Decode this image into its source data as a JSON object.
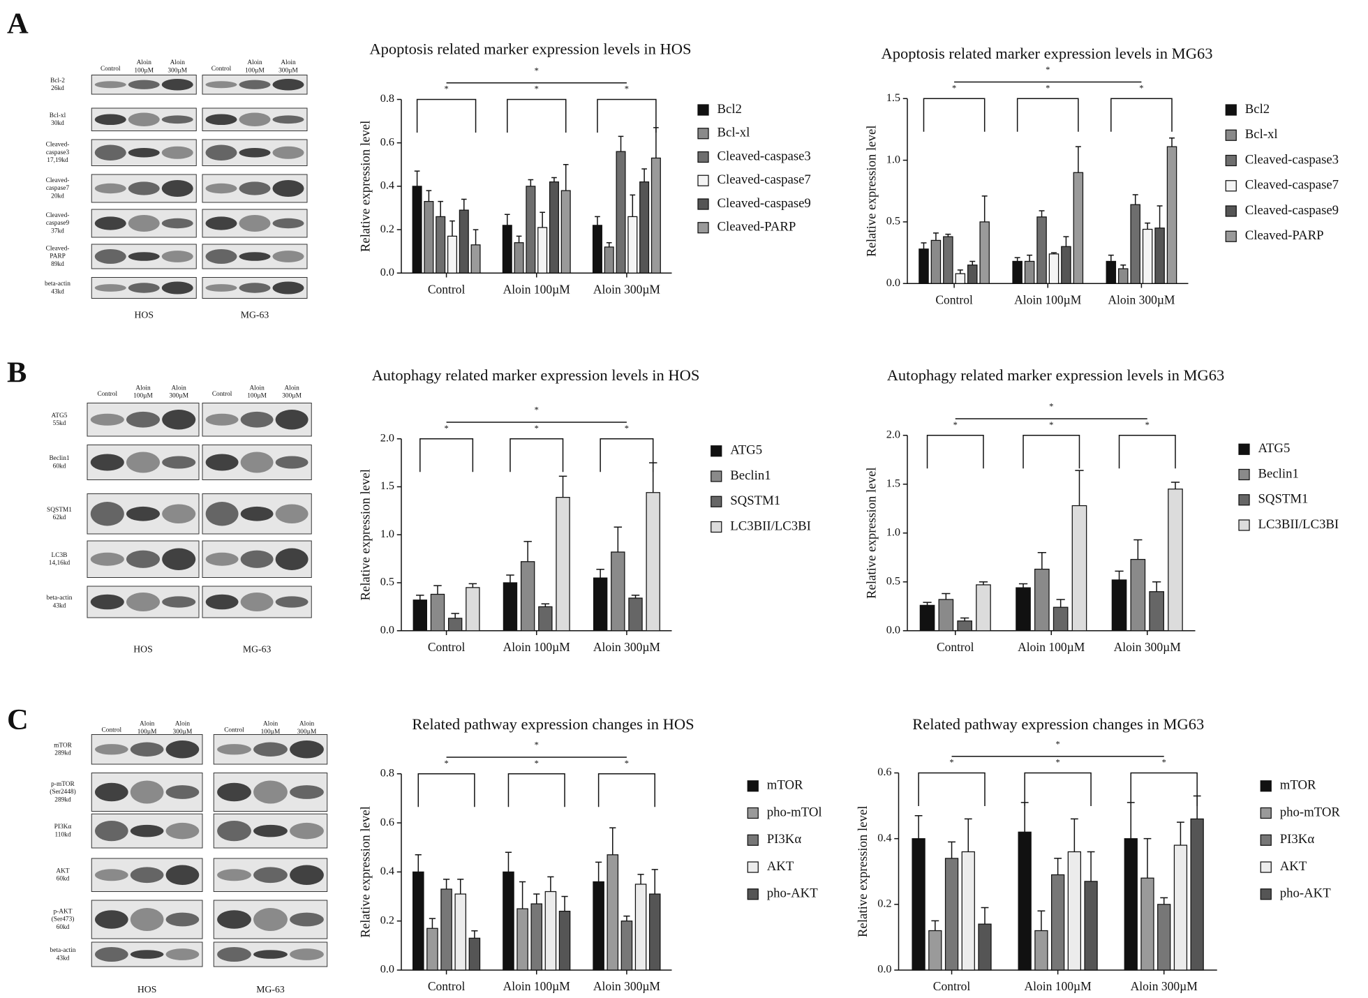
{
  "blots": [
    {
      "letter": "A",
      "headers": [
        [
          "Control"
        ],
        [
          "Aloin",
          "100µM"
        ],
        [
          "Aloin",
          "300µM"
        ]
      ],
      "rows": [
        [
          "Bcl-2",
          "26kd"
        ],
        [
          "Bcl-xl",
          "30kd"
        ],
        [
          "Cleaved-",
          "caspase3",
          "17,19kd"
        ],
        [
          "Cleaved-",
          "caspase7",
          "20kd"
        ],
        [
          "Cleaved-",
          "caspase9",
          "37kd"
        ],
        [
          "Cleaved-",
          "PARP",
          "89kd"
        ],
        [
          "beta-actin",
          "43kd"
        ]
      ],
      "cells": [
        "HOS",
        "MG-63"
      ]
    },
    {
      "letter": "B",
      "headers": [
        [
          "Control"
        ],
        [
          "Aloin",
          "100µM"
        ],
        [
          "Aloin",
          "300µM"
        ]
      ],
      "rows": [
        [
          "ATG5",
          "55kd"
        ],
        [
          "Beclin1",
          "60kd"
        ],
        [
          "SQSTM1",
          "62kd"
        ],
        [
          "LC3B",
          "14,16kd"
        ],
        [
          "beta-actin",
          "43kd"
        ]
      ],
      "cells": [
        "HOS",
        "MG-63"
      ]
    },
    {
      "letter": "C",
      "headers": [
        [
          "Control"
        ],
        [
          "Aloin",
          "100µM"
        ],
        [
          "Aloin",
          "300µM"
        ]
      ],
      "rows": [
        [
          "mTOR",
          "289kd"
        ],
        [
          "p-mTOR",
          "(Ser2448)",
          "289kd"
        ],
        [
          "PI3Kα",
          "110kd"
        ],
        [
          "AKT",
          "60kd"
        ],
        [
          "p-AKT",
          "(Ser473)",
          "60kd"
        ],
        [
          "beta-actin",
          "43kd"
        ]
      ],
      "cells": [
        "HOS",
        "MG-63"
      ]
    }
  ],
  "chart_data": [
    {
      "type": "bar",
      "title": "Apoptosis related marker expression levels in HOS",
      "y_label": "Relative expression level",
      "annotation": "*",
      "categories": [
        "Control",
        "Aloin 100µM",
        "Aloin 300µM"
      ],
      "ylim": [
        0,
        0.8
      ],
      "yticks": [
        {
          "value": 0,
          "label": "0.0"
        },
        0.2,
        0.4,
        0.6,
        0.8
      ],
      "series": [
        {
          "name": "Bcl2",
          "color": "#111111",
          "values": [
            0.4,
            0.22,
            0.22
          ],
          "errors": [
            0.07,
            0.05,
            0.04
          ]
        },
        {
          "name": "Bcl-xl",
          "color": "#8a8a8a",
          "values": [
            0.33,
            0.14,
            0.12
          ],
          "errors": [
            0.05,
            0.03,
            0.02
          ]
        },
        {
          "name": "Cleaved-caspase3",
          "color": "#6e6e6e",
          "values": [
            0.26,
            0.4,
            0.56
          ],
          "errors": [
            0.07,
            0.03,
            0.07
          ]
        },
        {
          "name": "Cleaved-caspase7",
          "color": "#f4f4f4",
          "values": [
            0.17,
            0.21,
            0.26
          ],
          "errors": [
            0.07,
            0.07,
            0.1
          ]
        },
        {
          "name": "Cleaved-caspase9",
          "color": "#555555",
          "values": [
            0.29,
            0.42,
            0.42
          ],
          "errors": [
            0.05,
            0.02,
            0.06
          ]
        },
        {
          "name": "Cleaved-PARP",
          "color": "#9a9a9a",
          "values": [
            0.13,
            0.38,
            0.53
          ],
          "errors": [
            0.07,
            0.12,
            0.14
          ]
        }
      ]
    },
    {
      "type": "bar",
      "title": "Apoptosis related marker expression levels in MG63",
      "y_label": "Relative expression level",
      "annotation": "*",
      "categories": [
        "Control",
        "Aloin 100µM",
        "Aloin 300µM"
      ],
      "ylim": [
        0,
        1.5
      ],
      "yticks": [
        {
          "value": 0,
          "label": "0.0"
        },
        0.5,
        {
          "value": 1,
          "label": "1.0"
        },
        1.5
      ],
      "series": [
        {
          "name": "Bcl2",
          "color": "#111111",
          "values": [
            0.28,
            0.18,
            0.18
          ],
          "errors": [
            0.05,
            0.03,
            0.05
          ]
        },
        {
          "name": "Bcl-xl",
          "color": "#8a8a8a",
          "values": [
            0.35,
            0.18,
            0.12
          ],
          "errors": [
            0.06,
            0.05,
            0.03
          ]
        },
        {
          "name": "Cleaved-caspase3",
          "color": "#6e6e6e",
          "values": [
            0.38,
            0.54,
            0.64
          ],
          "errors": [
            0.02,
            0.05,
            0.08
          ]
        },
        {
          "name": "Cleaved-caspase7",
          "color": "#f4f4f4",
          "values": [
            0.08,
            0.24,
            0.44
          ],
          "errors": [
            0.03,
            0.01,
            0.05
          ]
        },
        {
          "name": "Cleaved-caspase9",
          "color": "#555555",
          "values": [
            0.15,
            0.3,
            0.45
          ],
          "errors": [
            0.03,
            0.08,
            0.18
          ]
        },
        {
          "name": "Cleaved-PARP",
          "color": "#9a9a9a",
          "values": [
            0.5,
            0.9,
            1.11
          ],
          "errors": [
            0.21,
            0.21,
            0.07
          ]
        }
      ]
    },
    {
      "type": "bar",
      "title": "Autophagy related marker expression levels in HOS",
      "y_label": "Relative expression level",
      "annotation": "*",
      "categories": [
        "Control",
        "Aloin 100µM",
        "Aloin 300µM"
      ],
      "ylim": [
        0,
        2
      ],
      "yticks": [
        {
          "value": 0,
          "label": "0.0"
        },
        0.5,
        {
          "value": 1,
          "label": "1.0"
        },
        1.5,
        {
          "value": 2,
          "label": "2.0"
        }
      ],
      "series": [
        {
          "name": "ATG5",
          "color": "#111111",
          "values": [
            0.32,
            0.5,
            0.55
          ],
          "errors": [
            0.05,
            0.08,
            0.09
          ]
        },
        {
          "name": "Beclin1",
          "color": "#8a8a8a",
          "values": [
            0.38,
            0.72,
            0.82
          ],
          "errors": [
            0.09,
            0.21,
            0.26
          ]
        },
        {
          "name": "SQSTM1",
          "color": "#666666",
          "values": [
            0.13,
            0.25,
            0.34
          ],
          "errors": [
            0.05,
            0.03,
            0.03
          ]
        },
        {
          "name": "LC3BII/LC3BI",
          "color": "#dcdcdc",
          "values": [
            0.45,
            1.39,
            1.44
          ],
          "errors": [
            0.04,
            0.22,
            0.31
          ]
        }
      ]
    },
    {
      "type": "bar",
      "title": "Autophagy related marker expression levels in MG63",
      "y_label": "Relative expression level",
      "annotation": "*",
      "categories": [
        "Control",
        "Aloin 100µM",
        "Aloin 300µM"
      ],
      "ylim": [
        0,
        2
      ],
      "yticks": [
        {
          "value": 0,
          "label": "0.0"
        },
        0.5,
        {
          "value": 1,
          "label": "1.0"
        },
        1.5,
        {
          "value": 2,
          "label": "2.0"
        }
      ],
      "series": [
        {
          "name": "ATG5",
          "color": "#111111",
          "values": [
            0.26,
            0.44,
            0.52
          ],
          "errors": [
            0.03,
            0.04,
            0.09
          ]
        },
        {
          "name": "Beclin1",
          "color": "#8a8a8a",
          "values": [
            0.32,
            0.63,
            0.73
          ],
          "errors": [
            0.06,
            0.17,
            0.2
          ]
        },
        {
          "name": "SQSTM1",
          "color": "#666666",
          "values": [
            0.1,
            0.24,
            0.4
          ],
          "errors": [
            0.03,
            0.08,
            0.1
          ]
        },
        {
          "name": "LC3BII/LC3BI",
          "color": "#dcdcdc",
          "values": [
            0.47,
            1.28,
            1.45
          ],
          "errors": [
            0.03,
            0.36,
            0.07
          ]
        }
      ]
    },
    {
      "type": "bar",
      "title": "Related pathway expression changes in HOS",
      "y_label": "Relative expression level",
      "annotation": "*",
      "categories": [
        "Control",
        "Aloin 100µM",
        "Aloin 300µM"
      ],
      "ylim": [
        0,
        0.8
      ],
      "yticks": [
        {
          "value": 0,
          "label": "0.0"
        },
        0.2,
        0.4,
        0.6,
        0.8
      ],
      "series": [
        {
          "name": "mTOR",
          "color": "#111111",
          "values": [
            0.4,
            0.4,
            0.36
          ],
          "errors": [
            0.07,
            0.08,
            0.08
          ]
        },
        {
          "name": "pho-mTOl",
          "color": "#9a9a9a",
          "values": [
            0.17,
            0.25,
            0.47
          ],
          "errors": [
            0.04,
            0.11,
            0.11
          ]
        },
        {
          "name": "PI3Kα",
          "color": "#777777",
          "values": [
            0.33,
            0.27,
            0.2
          ],
          "errors": [
            0.04,
            0.04,
            0.02
          ]
        },
        {
          "name": "AKT",
          "color": "#ececec",
          "values": [
            0.31,
            0.32,
            0.35
          ],
          "errors": [
            0.06,
            0.06,
            0.04
          ]
        },
        {
          "name": "pho-AKT",
          "color": "#555555",
          "values": [
            0.13,
            0.24,
            0.31
          ],
          "errors": [
            0.03,
            0.06,
            0.1
          ]
        }
      ]
    },
    {
      "type": "bar",
      "title": "Related pathway expression changes in MG63",
      "y_label": "Relative expression level",
      "annotation": "*",
      "categories": [
        "Control",
        "Aloin 100µM",
        "Aloin 300µM"
      ],
      "ylim": [
        0,
        0.6
      ],
      "yticks": [
        {
          "value": 0,
          "label": "0.0"
        },
        0.2,
        0.4,
        0.6
      ],
      "series": [
        {
          "name": "mTOR",
          "color": "#111111",
          "values": [
            0.4,
            0.42,
            0.4
          ],
          "errors": [
            0.07,
            0.09,
            0.11
          ]
        },
        {
          "name": "pho-mTOR",
          "color": "#9a9a9a",
          "values": [
            0.12,
            0.12,
            0.28
          ],
          "errors": [
            0.03,
            0.06,
            0.12
          ]
        },
        {
          "name": "PI3Kα",
          "color": "#777777",
          "values": [
            0.34,
            0.29,
            0.2
          ],
          "errors": [
            0.05,
            0.05,
            0.02
          ]
        },
        {
          "name": "AKT",
          "color": "#ececec",
          "values": [
            0.36,
            0.36,
            0.38
          ],
          "errors": [
            0.1,
            0.1,
            0.07
          ]
        },
        {
          "name": "pho-AKT",
          "color": "#555555",
          "values": [
            0.14,
            0.27,
            0.46
          ],
          "errors": [
            0.05,
            0.09,
            0.07
          ]
        }
      ]
    }
  ]
}
